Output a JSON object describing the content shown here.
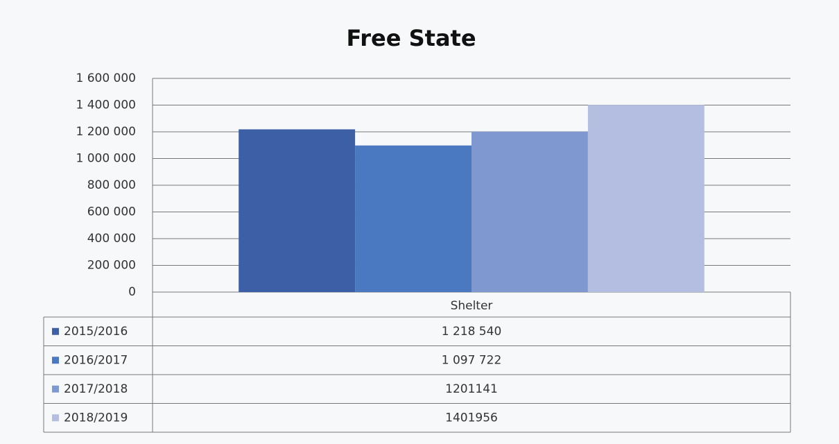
{
  "chart_data": {
    "type": "bar",
    "title": "Free State",
    "categories": [
      "Shelter"
    ],
    "series": [
      {
        "name": "2015/2016",
        "color": "#3c5fa6",
        "values": [
          1218540
        ],
        "value_labels": [
          "1 218 540"
        ]
      },
      {
        "name": "2016/2017",
        "color": "#4a79c2",
        "values": [
          1097722
        ],
        "value_labels": [
          "1 097 722"
        ]
      },
      {
        "name": "2017/2018",
        "color": "#7f98cf",
        "values": [
          1201141
        ],
        "value_labels": [
          "1201141"
        ]
      },
      {
        "name": "2018/2019",
        "color": "#b4bee0",
        "values": [
          1401956
        ],
        "value_labels": [
          "1401956"
        ]
      }
    ],
    "ylim": [
      0,
      1600000
    ],
    "yticks": [
      0,
      {
        "value": 200000,
        "label": "200 000"
      },
      {
        "value": 400000,
        "label": "400 000"
      },
      {
        "value": 600000,
        "label": "600 000"
      },
      {
        "value": 800000,
        "label": "800 000"
      },
      {
        "value": 1000000,
        "label": "1 000 000"
      },
      {
        "value": 1200000,
        "label": "1 200 000"
      },
      {
        "value": 1400000,
        "label": "1 400 000"
      },
      {
        "value": 1600000,
        "label": "1 600 000"
      }
    ],
    "grid": true
  }
}
